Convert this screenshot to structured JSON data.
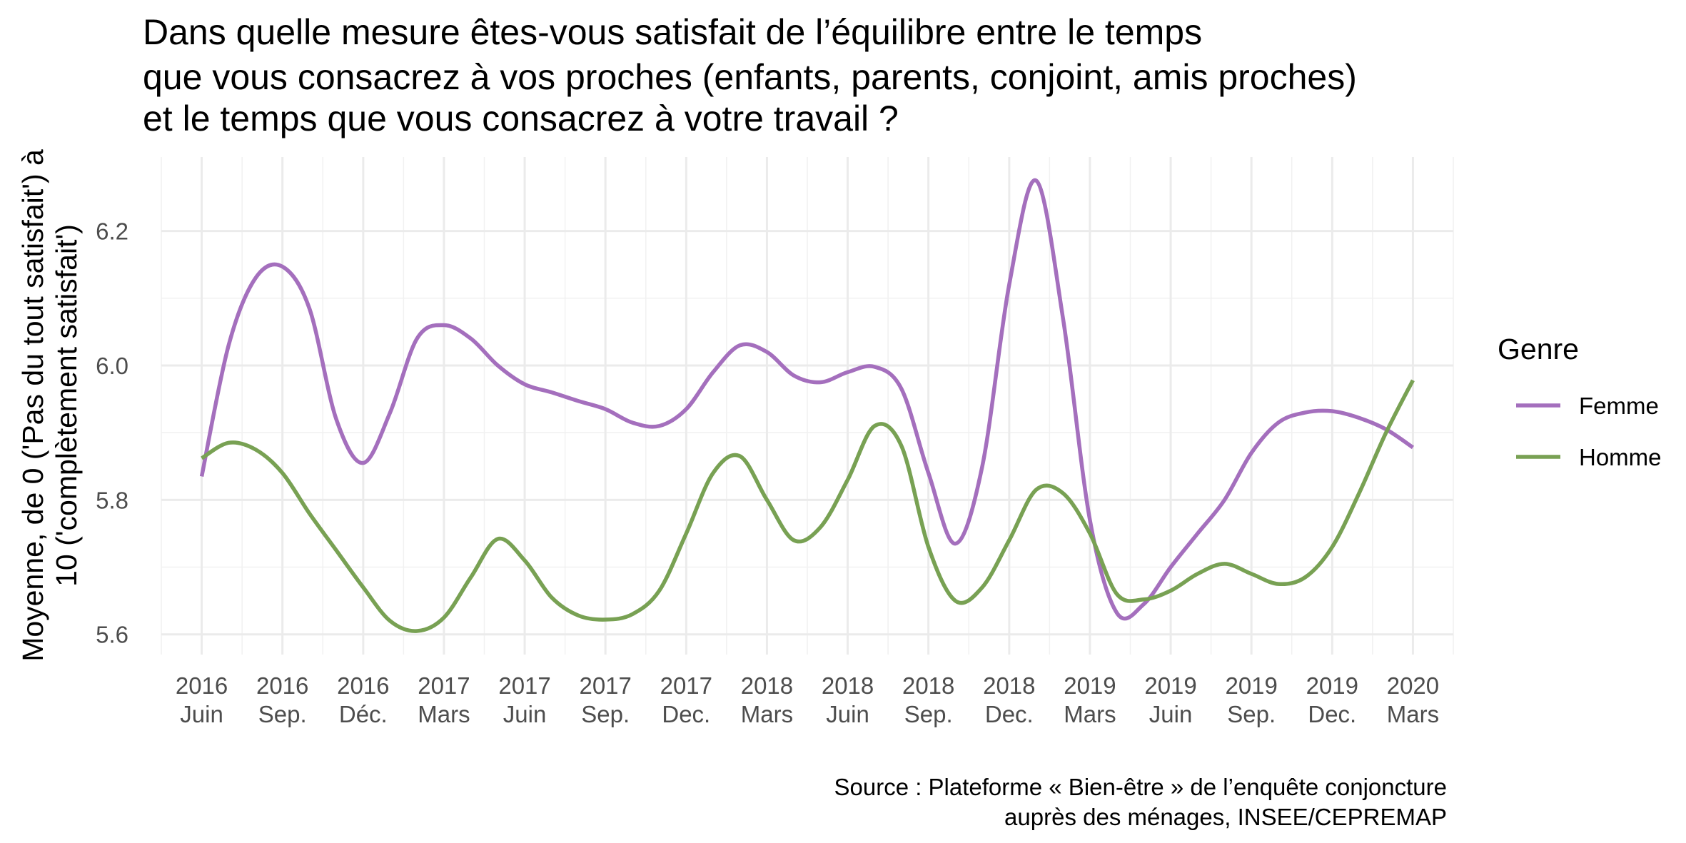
{
  "chart_data": {
    "type": "line",
    "title_lines": [
      "Dans quelle mesure êtes-vous satisfait de l’équilibre entre le temps",
      "que vous consacrez à vos proches (enfants, parents, conjoint, amis proches)",
      "et le temps que vous consacrez à votre travail ?"
    ],
    "ylabel_lines": [
      "Moyenne, de 0 ('Pas du tout satisfait') à",
      "10 ('complètement satisfait')"
    ],
    "xlabel": "",
    "caption_lines": [
      "Source : Plateforme « Bien-être » de l’enquête conjoncture",
      "auprès des ménages, INSEE/CEPREMAP"
    ],
    "ylim": [
      5.57,
      6.31
    ],
    "y_ticks": [
      5.6,
      5.8,
      6.0,
      6.2
    ],
    "y_tick_labels": [
      "5.6",
      "5.8",
      "6.0",
      "6.2"
    ],
    "x_range": [
      -1.5,
      46.5
    ],
    "x_ticks": [
      {
        "pos": 0,
        "line1": "2016",
        "line2": "Juin"
      },
      {
        "pos": 3,
        "line1": "2016",
        "line2": "Sep."
      },
      {
        "pos": 6,
        "line1": "2016",
        "line2": "Déc."
      },
      {
        "pos": 9,
        "line1": "2017",
        "line2": "Mars"
      },
      {
        "pos": 12,
        "line1": "2017",
        "line2": "Juin"
      },
      {
        "pos": 15,
        "line1": "2017",
        "line2": "Sep."
      },
      {
        "pos": 18,
        "line1": "2017",
        "line2": "Dec."
      },
      {
        "pos": 21,
        "line1": "2018",
        "line2": "Mars"
      },
      {
        "pos": 24,
        "line1": "2018",
        "line2": "Juin"
      },
      {
        "pos": 27,
        "line1": "2018",
        "line2": "Sep."
      },
      {
        "pos": 30,
        "line1": "2018",
        "line2": "Dec."
      },
      {
        "pos": 33,
        "line1": "2019",
        "line2": "Mars"
      },
      {
        "pos": 36,
        "line1": "2019",
        "line2": "Juin"
      },
      {
        "pos": 39,
        "line1": "2019",
        "line2": "Sep."
      },
      {
        "pos": 42,
        "line1": "2019",
        "line2": "Dec."
      },
      {
        "pos": 45,
        "line1": "2020",
        "line2": "Mars"
      }
    ],
    "legend": {
      "title": "Genre",
      "position": "right"
    },
    "grid": true,
    "series": [
      {
        "name": "Femme",
        "color": "#a46fbd",
        "x": [
          0,
          1,
          2,
          3,
          4,
          5,
          6,
          7,
          8,
          9,
          10,
          11,
          12,
          13,
          14,
          15,
          16,
          17,
          18,
          19,
          20,
          21,
          22,
          23,
          24,
          25,
          26,
          27,
          28,
          29,
          30,
          31,
          32,
          33,
          34,
          35,
          36,
          37,
          38,
          39,
          40,
          41,
          42,
          43,
          44,
          45
        ],
        "y": [
          5.835,
          6.03,
          6.13,
          6.147,
          6.085,
          5.92,
          5.855,
          5.93,
          6.04,
          6.06,
          6.04,
          6.0,
          5.972,
          5.96,
          5.947,
          5.935,
          5.915,
          5.91,
          5.935,
          5.99,
          6.03,
          6.02,
          5.985,
          5.975,
          5.99,
          5.998,
          5.965,
          5.84,
          5.735,
          5.85,
          6.12,
          6.275,
          6.07,
          5.77,
          5.632,
          5.645,
          5.7,
          5.75,
          5.8,
          5.87,
          5.915,
          5.93,
          5.932,
          5.922,
          5.905,
          5.878
        ]
      },
      {
        "name": "Homme",
        "color": "#78a153",
        "x": [
          0,
          1,
          2,
          3,
          4,
          5,
          6,
          7,
          8,
          9,
          10,
          11,
          12,
          13,
          14,
          15,
          16,
          17,
          18,
          19,
          20,
          21,
          22,
          23,
          24,
          25,
          26,
          27,
          28,
          29,
          30,
          31,
          32,
          33,
          34,
          35,
          36,
          37,
          38,
          39,
          40,
          41,
          42,
          43,
          44,
          45
        ],
        "y": [
          5.862,
          5.885,
          5.875,
          5.84,
          5.78,
          5.725,
          5.67,
          5.62,
          5.605,
          5.625,
          5.685,
          5.742,
          5.71,
          5.655,
          5.628,
          5.622,
          5.63,
          5.665,
          5.75,
          5.84,
          5.865,
          5.8,
          5.74,
          5.76,
          5.83,
          5.91,
          5.88,
          5.73,
          5.65,
          5.67,
          5.74,
          5.815,
          5.81,
          5.75,
          5.66,
          5.652,
          5.665,
          5.69,
          5.705,
          5.69,
          5.675,
          5.685,
          5.73,
          5.81,
          5.9,
          5.978
        ]
      }
    ]
  }
}
